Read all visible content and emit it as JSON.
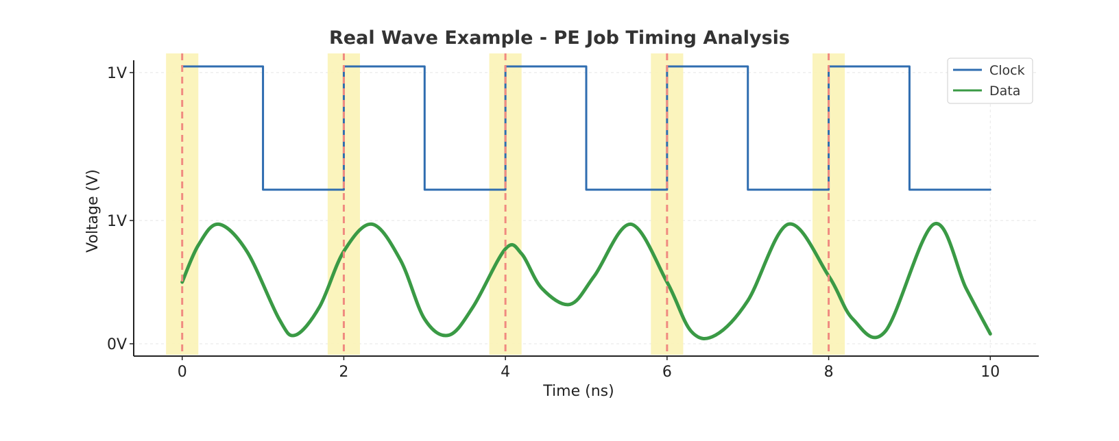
{
  "chart_data": {
    "type": "line",
    "title": "Real Wave Example - PE Job Timing Analysis",
    "xlabel": "Time (ns)",
    "ylabel": "Voltage (V)",
    "xlim": [
      -0.6,
      10.6
    ],
    "x_ticks": [
      0,
      2,
      4,
      6,
      8,
      10
    ],
    "x_tick_labels": [
      "0",
      "2",
      "4",
      "6",
      "8",
      "10"
    ],
    "y_tick_labels": [
      {
        "label": "1V",
        "value": 2.2
      },
      {
        "label": "1V",
        "value": 1.0
      },
      {
        "label": "0V",
        "value": 0.0
      }
    ],
    "ylim": [
      -0.1,
      2.3
    ],
    "grid": true,
    "legend_position": "top-right",
    "series": [
      {
        "name": "Clock",
        "color": "#2f6db0",
        "kind": "step",
        "x": [
          0,
          1.0,
          1.0,
          2.0,
          2.0,
          3.0,
          3.0,
          4.0,
          4.0,
          5.0,
          5.0,
          6.0,
          6.0,
          7.0,
          7.0,
          8.0,
          8.0,
          9.0,
          9.0,
          10.0
        ],
        "y": [
          2.25,
          2.25,
          1.25,
          1.25,
          2.25,
          2.25,
          1.25,
          1.25,
          2.25,
          2.25,
          1.25,
          1.25,
          2.25,
          2.25,
          1.25,
          1.25,
          2.25,
          2.25,
          1.25,
          1.25
        ]
      },
      {
        "name": "Data",
        "color": "#3a9a45",
        "kind": "line",
        "x": [
          0,
          0.2,
          0.45,
          0.8,
          1.2,
          1.4,
          1.7,
          2.0,
          2.35,
          2.7,
          3.0,
          3.3,
          3.6,
          4.0,
          4.2,
          4.45,
          4.8,
          5.1,
          5.55,
          6.0,
          6.3,
          6.6,
          7.0,
          7.5,
          8.0,
          8.3,
          8.7,
          9.3,
          9.7,
          10.0
        ],
        "y": [
          0.5,
          0.8,
          0.97,
          0.75,
          0.2,
          0.07,
          0.3,
          0.75,
          0.97,
          0.68,
          0.2,
          0.07,
          0.3,
          0.77,
          0.73,
          0.45,
          0.32,
          0.55,
          0.97,
          0.5,
          0.1,
          0.07,
          0.35,
          0.97,
          0.55,
          0.2,
          0.1,
          0.97,
          0.45,
          0.08
        ]
      }
    ],
    "markers": {
      "edges_x": [
        0,
        2.0,
        4.0,
        6.0,
        8.0
      ],
      "window_halfwidth": 0.2,
      "edge_line_color": "#f08a80",
      "window_color": "#fbf3b6"
    }
  }
}
